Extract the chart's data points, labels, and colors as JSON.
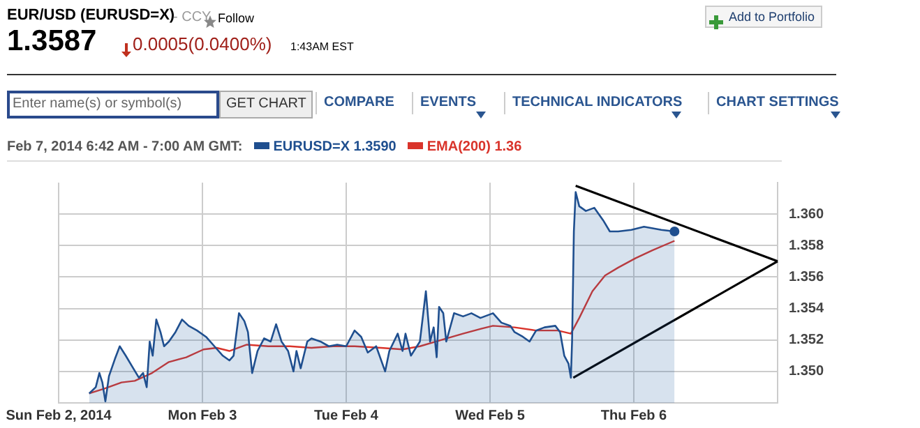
{
  "chart_data": {
    "type": "line",
    "title": "EUR/USD (EURUSD=X)",
    "annotations": [
      "- CCY",
      "Follow",
      "1.3587",
      "0.0005(0.0400%)",
      "1:43AM EST",
      "Add to Portfolio",
      "Enter name(s) or symbol(s)",
      "GET CHART",
      "COMPARE",
      "EVENTS",
      "TECHNICAL INDICATORS",
      "CHART SETTINGS"
    ],
    "legend_title": "Feb 7, 2014 6:42 AM - 7:00 AM GMT:",
    "legend": "top",
    "grid": true,
    "marker": "none",
    "line_style": "solid",
    "xlim": [
      "2014-02-02",
      "2014-02-07"
    ],
    "xticks": [
      {
        "value": "2014-02-02",
        "label": "Sun Feb 2, 2014"
      },
      {
        "value": "2014-02-03",
        "label": "Mon Feb 3"
      },
      {
        "value": "2014-02-04",
        "label": "Tue Feb 4"
      },
      {
        "value": "2014-02-05",
        "label": "Wed Feb 5"
      },
      {
        "value": "2014-02-06",
        "label": "Thu Feb 6"
      }
    ],
    "ylim": [
      1.348,
      1.362
    ],
    "yticks": [
      {
        "value": 1.35,
        "label": "1.350"
      },
      1.352,
      1.354,
      1.356,
      1.358,
      {
        "value": 1.36,
        "label": "1.360"
      }
    ],
    "series": [
      {
        "name": "EURUSD=X 1.3590",
        "type": "area",
        "color": "#1f4f8f",
        "x": [
          "2014-02-02T05:06",
          "2014-02-02T06:12",
          "2014-02-02T06:48",
          "2014-02-02T07:18",
          "2014-02-02T07:48",
          "2014-02-02T08:24",
          "2014-02-02T09:24",
          "2014-02-02T10:12",
          "2014-02-02T11:12",
          "2014-02-02T12:18",
          "2014-02-02T13:24",
          "2014-02-02T14:06",
          "2014-02-02T14:42",
          "2014-02-02T15:12",
          "2014-02-02T15:42",
          "2014-02-02T16:18",
          "2014-02-02T17:00",
          "2014-02-02T17:36",
          "2014-02-02T18:24",
          "2014-02-02T19:30",
          "2014-02-02T20:36",
          "2014-02-02T21:42",
          "2014-02-02T23:06",
          "2014-02-03T00:36",
          "2014-02-03T02:00",
          "2014-02-03T03:24",
          "2014-02-03T04:30",
          "2014-02-03T05:12",
          "2014-02-03T06:06",
          "2014-02-03T07:00",
          "2014-02-03T07:36",
          "2014-02-03T08:18",
          "2014-02-03T09:12",
          "2014-02-03T10:18",
          "2014-02-03T11:24",
          "2014-02-03T12:18",
          "2014-02-03T13:12",
          "2014-02-03T14:18",
          "2014-02-03T15:12",
          "2014-02-03T15:42",
          "2014-02-03T16:24",
          "2014-02-03T17:30",
          "2014-02-03T18:12",
          "2014-02-03T19:42",
          "2014-02-03T21:06",
          "2014-02-03T22:30",
          "2014-02-04T00:00",
          "2014-02-04T01:24",
          "2014-02-04T02:30",
          "2014-02-04T03:36",
          "2014-02-04T05:00",
          "2014-02-04T06:30",
          "2014-02-04T07:12",
          "2014-02-04T08:36",
          "2014-02-04T09:24",
          "2014-02-04T09:54",
          "2014-02-04T10:48",
          "2014-02-04T12:18",
          "2014-02-04T13:18",
          "2014-02-04T14:00",
          "2014-02-04T14:36",
          "2014-02-04T15:06",
          "2014-02-04T15:30",
          "2014-02-04T16:12",
          "2014-02-04T16:42",
          "2014-02-04T18:00",
          "2014-02-04T19:30",
          "2014-02-04T20:54",
          "2014-02-04T22:24",
          "2014-02-05T00:30",
          "2014-02-05T01:54",
          "2014-02-05T03:24",
          "2014-02-05T04:06",
          "2014-02-05T05:30",
          "2014-02-05T06:36",
          "2014-02-05T07:42",
          "2014-02-05T09:06",
          "2014-02-05T10:54",
          "2014-02-05T11:42",
          "2014-02-05T12:24",
          "2014-02-05T13:06",
          "2014-02-05T13:30",
          "2014-02-05T13:42",
          "2014-02-05T14:00",
          "2014-02-05T14:18",
          "2014-02-05T14:54",
          "2014-02-05T16:00",
          "2014-02-05T17:24",
          "2014-02-05T18:54",
          "2014-02-05T20:00",
          "2014-02-05T21:24",
          "2014-02-05T23:36",
          "2014-02-06T01:42",
          "2014-02-06T04:36",
          "2014-02-06T06:48"
        ],
        "values": [
          1.3486,
          1.349,
          1.3499,
          1.3493,
          1.3481,
          1.3497,
          1.3508,
          1.3516,
          1.351,
          1.3503,
          1.3496,
          1.3499,
          1.349,
          1.3519,
          1.351,
          1.3533,
          1.3525,
          1.3516,
          1.3519,
          1.3525,
          1.3533,
          1.3529,
          1.3526,
          1.3522,
          1.3516,
          1.351,
          1.3507,
          1.351,
          1.3537,
          1.3532,
          1.3525,
          1.3499,
          1.3513,
          1.3521,
          1.3519,
          1.353,
          1.3519,
          1.3513,
          1.35,
          1.3513,
          1.3502,
          1.3519,
          1.3521,
          1.3519,
          1.3516,
          1.3517,
          1.3516,
          1.3526,
          1.3522,
          1.3512,
          1.3516,
          1.35,
          1.3513,
          1.3524,
          1.3513,
          1.3524,
          1.351,
          1.3519,
          1.3551,
          1.3519,
          1.3528,
          1.3509,
          1.3541,
          1.3537,
          1.3519,
          1.3537,
          1.3535,
          1.3537,
          1.3534,
          1.3537,
          1.3531,
          1.3529,
          1.3525,
          1.3522,
          1.3519,
          1.3526,
          1.3528,
          1.3529,
          1.3525,
          1.351,
          1.3505,
          1.3496,
          1.3519,
          1.3589,
          1.3614,
          1.3605,
          1.3602,
          1.3604,
          1.3596,
          1.3589,
          1.3589,
          1.359,
          1.3592,
          1.359,
          1.3589
        ]
      },
      {
        "name": "EMA(200) 1.36",
        "type": "line",
        "color": "#d9342b",
        "x": [
          "2014-02-02T05:06",
          "2014-02-02T07:36",
          "2014-02-02T10:30",
          "2014-02-02T12:42",
          "2014-02-02T15:36",
          "2014-02-02T18:24",
          "2014-02-02T21:18",
          "2014-02-03T00:12",
          "2014-02-03T02:24",
          "2014-02-03T04:30",
          "2014-02-03T07:24",
          "2014-02-03T11:00",
          "2014-02-03T14:36",
          "2014-02-03T18:12",
          "2014-02-03T21:48",
          "2014-02-04T01:24",
          "2014-02-04T05:48",
          "2014-02-04T09:24",
          "2014-02-04T12:18",
          "2014-02-04T15:54",
          "2014-02-04T19:30",
          "2014-02-04T22:24",
          "2014-02-05T00:30",
          "2014-02-05T04:06",
          "2014-02-05T07:42",
          "2014-02-05T11:18",
          "2014-02-05T13:30",
          "2014-02-05T14:54",
          "2014-02-05T17:06",
          "2014-02-05T19:12",
          "2014-02-05T21:24",
          "2014-02-06T00:18",
          "2014-02-06T03:06",
          "2014-02-06T06:48"
        ],
        "values": [
          1.3486,
          1.3489,
          1.3493,
          1.3494,
          1.3499,
          1.3506,
          1.3509,
          1.3514,
          1.3515,
          1.3513,
          1.3517,
          1.3516,
          1.3516,
          1.3515,
          1.3516,
          1.3516,
          1.3515,
          1.3514,
          1.3516,
          1.352,
          1.3524,
          1.3527,
          1.3529,
          1.3528,
          1.3526,
          1.3526,
          1.3524,
          1.3534,
          1.3551,
          1.3561,
          1.3566,
          1.3572,
          1.3577,
          1.3583
        ]
      },
      {
        "type": "line",
        "color": "#000000",
        "x": [
          "2014-02-05T14:18",
          "2014-02-07"
        ],
        "values": [
          1.3618,
          1.357
        ]
      },
      {
        "type": "line",
        "color": "#000000",
        "x": [
          "2014-02-05T13:54",
          "2014-02-07"
        ],
        "values": [
          1.3496,
          1.357
        ]
      }
    ]
  }
}
